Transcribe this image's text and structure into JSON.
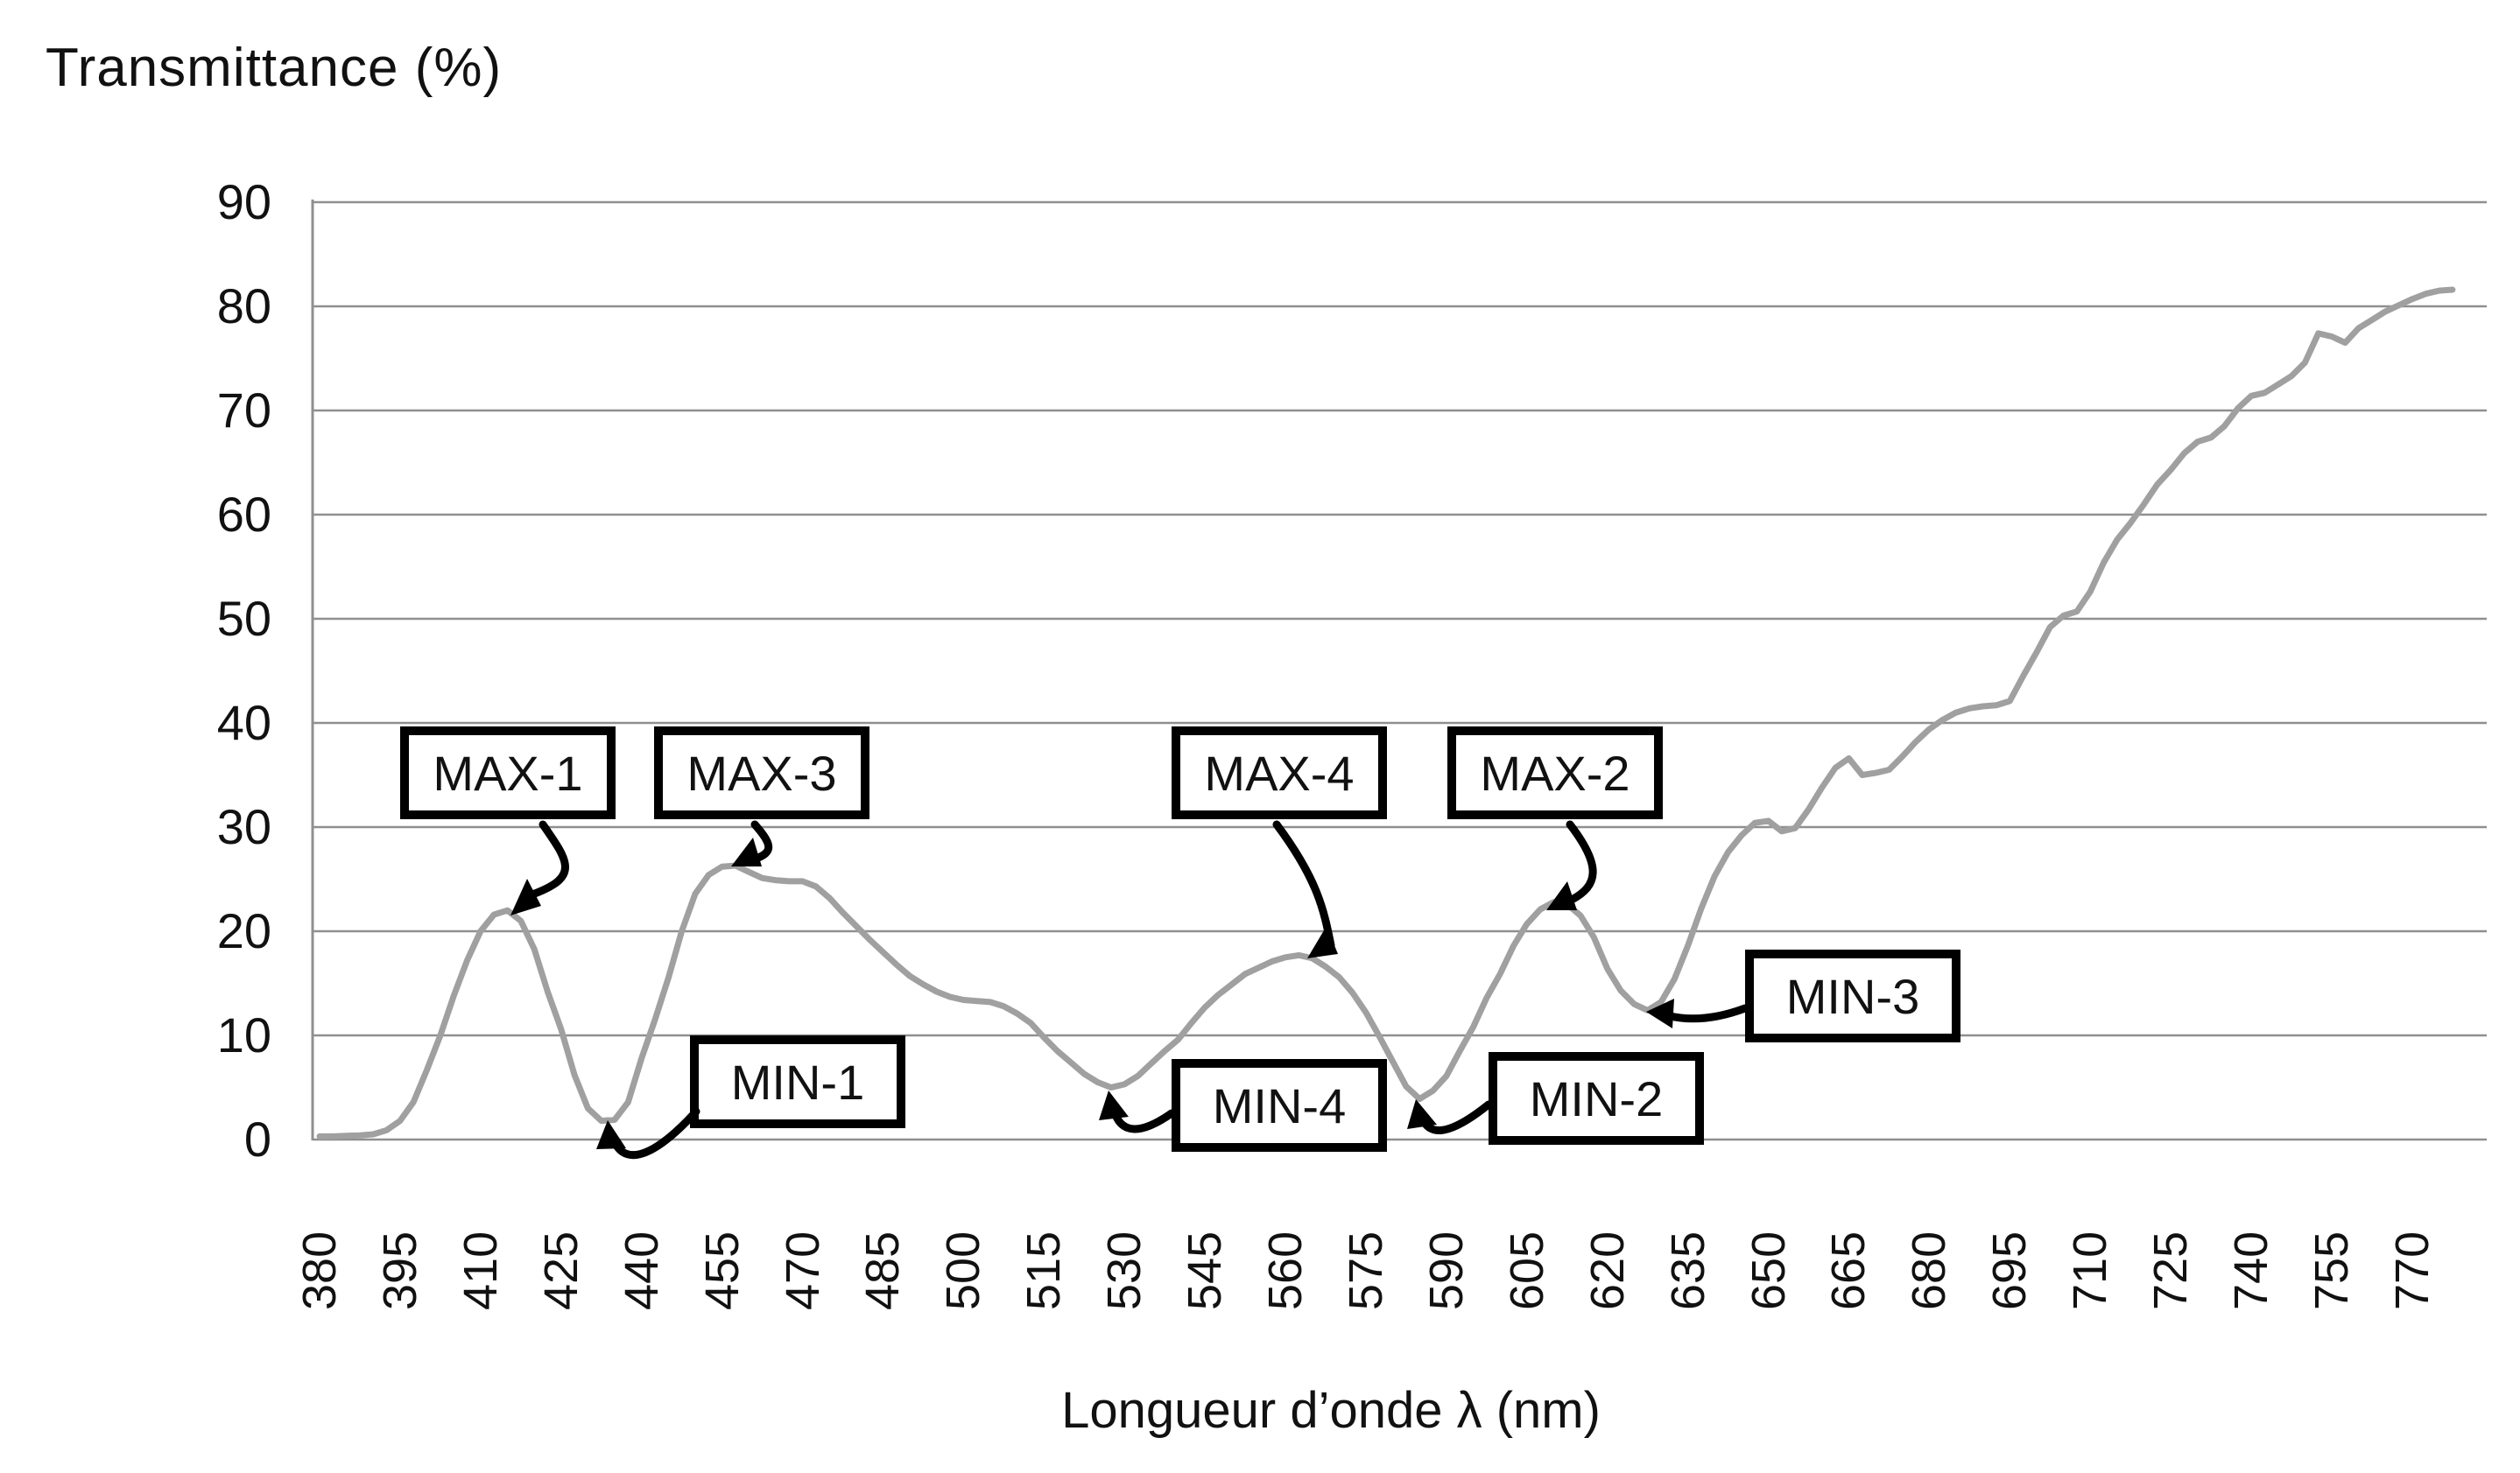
{
  "title": "Transmittance (%)",
  "x_axis_title": "Longueur d’onde λ (nm)",
  "chart_data": {
    "type": "line",
    "title": "Transmittance (%)",
    "xlabel": "Longueur d’onde λ (nm)",
    "ylabel": "Transmittance (%)",
    "ylim": [
      0,
      90
    ],
    "xlim": [
      380,
      783
    ],
    "grid": "horizontal",
    "legend": "none",
    "line_color": "#a0a0a0",
    "y_ticks": [
      90,
      80,
      70,
      60,
      50,
      40,
      30,
      20,
      10,
      0
    ],
    "x_ticks": [
      380,
      395,
      410,
      425,
      440,
      455,
      470,
      485,
      500,
      515,
      530,
      545,
      560,
      575,
      590,
      605,
      620,
      635,
      650,
      665,
      680,
      695,
      710,
      725,
      740,
      755,
      770
    ],
    "series": [
      {
        "name": "transmittance",
        "points": [
          [
            380,
            0.3
          ],
          [
            382.5,
            0.3
          ],
          [
            385,
            0.35
          ],
          [
            387.5,
            0.4
          ],
          [
            390,
            0.5
          ],
          [
            392.5,
            0.9
          ],
          [
            395,
            1.8
          ],
          [
            397.5,
            3.6
          ],
          [
            400,
            6.7
          ],
          [
            402.5,
            10.0
          ],
          [
            405,
            13.8
          ],
          [
            407.5,
            17.2
          ],
          [
            410,
            20.0
          ],
          [
            412.5,
            21.6
          ],
          [
            415,
            22.0
          ],
          [
            417.5,
            21.0
          ],
          [
            420,
            18.3
          ],
          [
            422.5,
            14.2
          ],
          [
            425,
            10.6
          ],
          [
            427.5,
            6.2
          ],
          [
            430,
            3.0
          ],
          [
            432.5,
            1.8
          ],
          [
            435,
            1.9
          ],
          [
            437.5,
            3.6
          ],
          [
            440,
            7.8
          ],
          [
            442.5,
            11.5
          ],
          [
            445,
            15.5
          ],
          [
            447.5,
            20.0
          ],
          [
            450,
            23.6
          ],
          [
            452.5,
            25.4
          ],
          [
            455,
            26.2
          ],
          [
            457.5,
            26.3
          ],
          [
            460,
            25.7
          ],
          [
            462.5,
            25.1
          ],
          [
            465,
            24.9
          ],
          [
            467.5,
            24.8
          ],
          [
            470,
            24.8
          ],
          [
            472.5,
            24.3
          ],
          [
            475,
            23.2
          ],
          [
            477.5,
            21.8
          ],
          [
            480,
            20.5
          ],
          [
            482.5,
            19.2
          ],
          [
            485,
            18.0
          ],
          [
            487.5,
            16.8
          ],
          [
            490,
            15.7
          ],
          [
            492.5,
            14.9
          ],
          [
            495,
            14.2
          ],
          [
            497.5,
            13.7
          ],
          [
            500,
            13.4
          ],
          [
            502.5,
            13.3
          ],
          [
            505,
            13.2
          ],
          [
            507.5,
            12.8
          ],
          [
            510,
            12.1
          ],
          [
            512.5,
            11.2
          ],
          [
            515,
            9.8
          ],
          [
            517.5,
            8.5
          ],
          [
            520,
            7.4
          ],
          [
            522.5,
            6.3
          ],
          [
            525,
            5.5
          ],
          [
            527.5,
            5.0
          ],
          [
            530,
            5.3
          ],
          [
            532.5,
            6.1
          ],
          [
            535,
            7.3
          ],
          [
            537.5,
            8.5
          ],
          [
            540,
            9.6
          ],
          [
            542.5,
            11.2
          ],
          [
            545,
            12.7
          ],
          [
            547.5,
            13.9
          ],
          [
            550,
            14.9
          ],
          [
            552.5,
            15.9
          ],
          [
            555,
            16.5
          ],
          [
            557.5,
            17.1
          ],
          [
            560,
            17.5
          ],
          [
            562.5,
            17.7
          ],
          [
            565,
            17.4
          ],
          [
            567.5,
            16.6
          ],
          [
            570,
            15.6
          ],
          [
            572.5,
            14.1
          ],
          [
            575,
            12.2
          ],
          [
            577.5,
            9.9
          ],
          [
            580,
            7.5
          ],
          [
            582.5,
            5.1
          ],
          [
            585,
            3.9
          ],
          [
            587.5,
            4.7
          ],
          [
            590,
            6.1
          ],
          [
            592.5,
            8.5
          ],
          [
            595,
            10.8
          ],
          [
            597.5,
            13.6
          ],
          [
            600,
            15.9
          ],
          [
            602.5,
            18.6
          ],
          [
            605,
            20.7
          ],
          [
            607.5,
            22.1
          ],
          [
            610,
            22.8
          ],
          [
            612.5,
            22.6
          ],
          [
            615,
            21.5
          ],
          [
            617.5,
            19.4
          ],
          [
            620,
            16.4
          ],
          [
            622.5,
            14.3
          ],
          [
            625,
            13.0
          ],
          [
            627.5,
            12.4
          ],
          [
            630,
            13.2
          ],
          [
            632.5,
            15.4
          ],
          [
            635,
            18.6
          ],
          [
            637.5,
            22.2
          ],
          [
            640,
            25.3
          ],
          [
            642.5,
            27.6
          ],
          [
            645,
            29.2
          ],
          [
            647.5,
            30.4
          ],
          [
            650,
            30.6
          ],
          [
            652.5,
            29.6
          ],
          [
            655,
            29.9
          ],
          [
            657.5,
            31.7
          ],
          [
            660,
            33.8
          ],
          [
            662.5,
            35.7
          ],
          [
            665,
            36.6
          ],
          [
            667.5,
            35.0
          ],
          [
            670,
            35.2
          ],
          [
            672.5,
            35.5
          ],
          [
            675,
            36.8
          ],
          [
            677.5,
            38.2
          ],
          [
            680,
            39.4
          ],
          [
            682.5,
            40.3
          ],
          [
            685,
            41.0
          ],
          [
            687.5,
            41.4
          ],
          [
            690,
            41.6
          ],
          [
            692.5,
            41.7
          ],
          [
            695,
            42.1
          ],
          [
            697.5,
            44.5
          ],
          [
            700,
            46.8
          ],
          [
            702.5,
            49.2
          ],
          [
            705,
            50.3
          ],
          [
            707.5,
            50.7
          ],
          [
            710,
            52.6
          ],
          [
            712.5,
            55.4
          ],
          [
            715,
            57.6
          ],
          [
            717.5,
            59.2
          ],
          [
            720,
            61.0
          ],
          [
            722.5,
            62.9
          ],
          [
            725,
            64.3
          ],
          [
            727.5,
            65.9
          ],
          [
            730,
            67.0
          ],
          [
            732.5,
            67.4
          ],
          [
            735,
            68.5
          ],
          [
            737.5,
            70.2
          ],
          [
            740,
            71.4
          ],
          [
            742.5,
            71.7
          ],
          [
            745,
            72.5
          ],
          [
            747.5,
            73.3
          ],
          [
            750,
            74.6
          ],
          [
            752.5,
            77.4
          ],
          [
            755,
            77.1
          ],
          [
            757.5,
            76.5
          ],
          [
            760,
            77.9
          ],
          [
            762.5,
            78.7
          ],
          [
            765,
            79.5
          ],
          [
            767.5,
            80.1
          ],
          [
            770,
            80.7
          ],
          [
            772.5,
            81.2
          ],
          [
            775,
            81.5
          ],
          [
            777.5,
            81.6
          ]
        ]
      }
    ],
    "annotations": {
      "max1": {
        "label": "MAX-1",
        "nm": 414,
        "value": 22.0
      },
      "max3": {
        "label": "MAX-3",
        "nm": 457,
        "value": 26.3
      },
      "max4": {
        "label": "MAX-4",
        "nm": 562,
        "value": 17.7
      },
      "max2": {
        "label": "MAX-2",
        "nm": 610,
        "value": 22.8
      },
      "min1": {
        "label": "MIN-1",
        "nm": 433,
        "value": 1.8
      },
      "min4": {
        "label": "MIN-4",
        "nm": 527,
        "value": 5.0
      },
      "min2": {
        "label": "MIN-2",
        "nm": 585,
        "value": 3.9
      },
      "min3": {
        "label": "MIN-3",
        "nm": 627,
        "value": 12.4
      }
    }
  }
}
